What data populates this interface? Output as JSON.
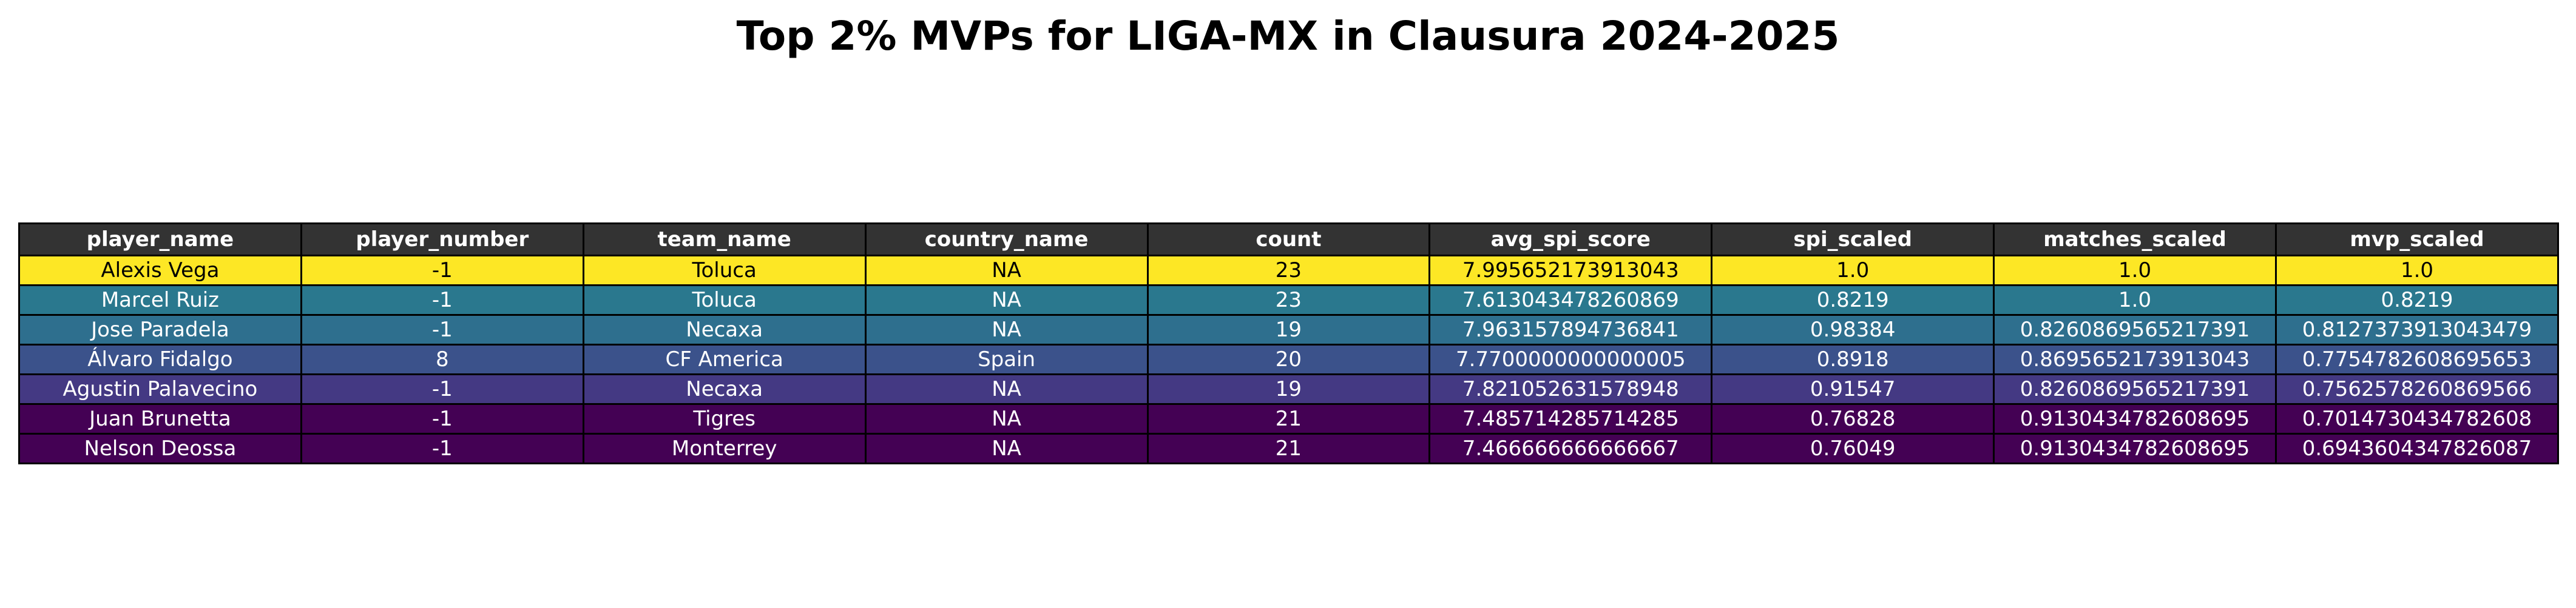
{
  "chart_data": {
    "type": "table",
    "title": "Top 2% MVPs for LIGA-MX in Clausura 2024-2025",
    "columns": [
      "player_name",
      "player_number",
      "team_name",
      "country_name",
      "count",
      "avg_spi_score",
      "spi_scaled",
      "matches_scaled",
      "mvp_scaled"
    ],
    "rows": [
      [
        "Alexis Vega",
        "-1",
        "Toluca",
        "NA",
        "23",
        "7.995652173913043",
        "1.0",
        "1.0",
        "1.0"
      ],
      [
        "Marcel Ruiz",
        "-1",
        "Toluca",
        "NA",
        "23",
        "7.613043478260869",
        "0.8219",
        "1.0",
        "0.8219"
      ],
      [
        "Jose Paradela",
        "-1",
        "Necaxa",
        "NA",
        "19",
        "7.963157894736841",
        "0.98384",
        "0.8260869565217391",
        "0.8127373913043479"
      ],
      [
        "Álvaro Fidalgo",
        "8",
        "CF America",
        "Spain",
        "20",
        "7.7700000000000005",
        "0.8918",
        "0.8695652173913043",
        "0.7754782608695653"
      ],
      [
        "Agustin Palavecino",
        "-1",
        "Necaxa",
        "NA",
        "19",
        "7.821052631578948",
        "0.91547",
        "0.8260869565217391",
        "0.7562578260869566"
      ],
      [
        "Juan Brunetta",
        "-1",
        "Tigres",
        "NA",
        "21",
        "7.485714285714285",
        "0.76828",
        "0.9130434782608695",
        "0.7014730434782608"
      ],
      [
        "Nelson Deossa",
        "-1",
        "Monterrey",
        "NA",
        "21",
        "7.466666666666667",
        "0.76049",
        "0.9130434782608695",
        "0.6943604347826087"
      ]
    ],
    "row_colors": [
      "#fde725",
      "#2a788e",
      "#2e6f8e",
      "#3b528b",
      "#443983",
      "#440154",
      "#440154"
    ],
    "row_text_colors": [
      "#000000",
      "#ffffff",
      "#ffffff",
      "#ffffff",
      "#ffffff",
      "#ffffff",
      "#ffffff"
    ],
    "header_color": "#333333",
    "header_text_color": "#ffffff"
  }
}
